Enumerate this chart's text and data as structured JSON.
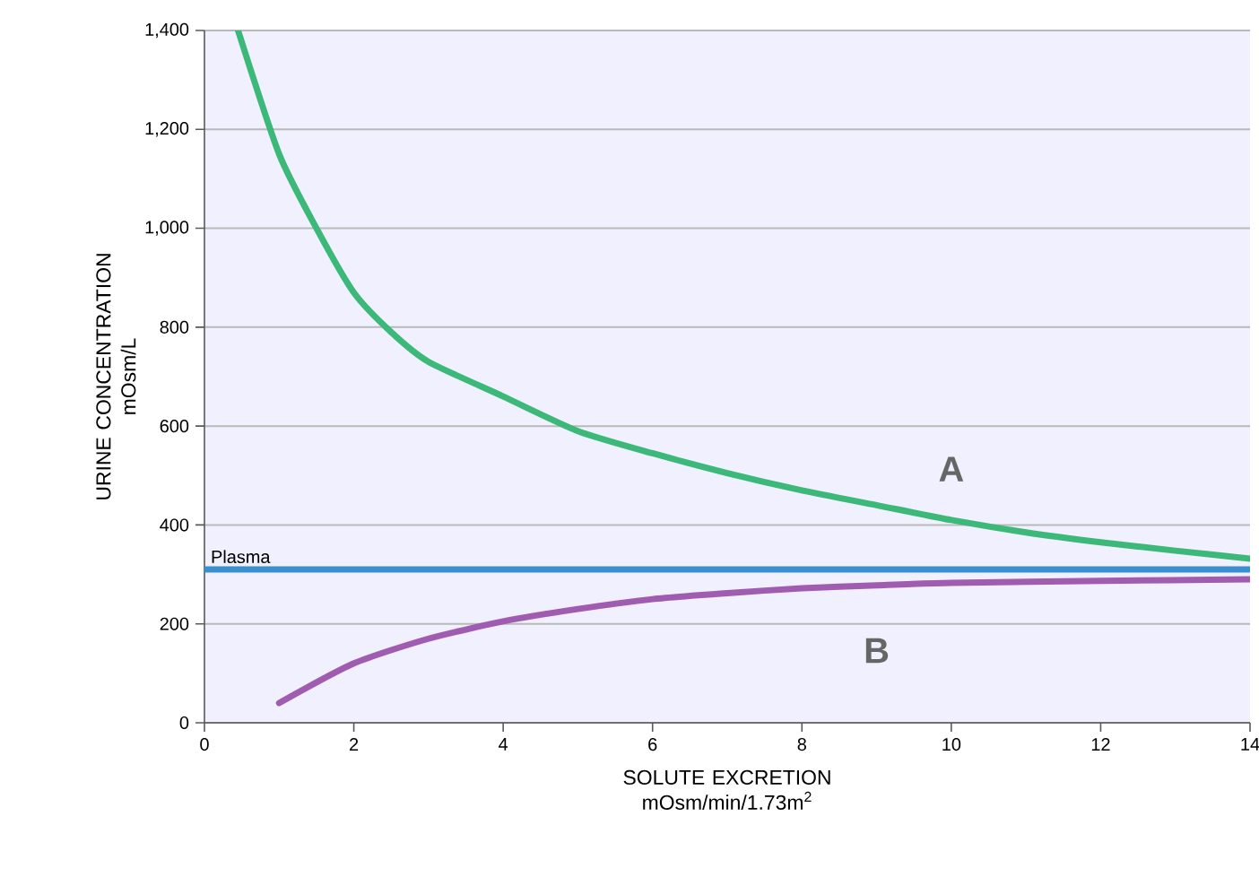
{
  "chart_data": {
    "type": "line",
    "xlabel": "SOLUTE EXCRETION mOsm/min/1.73m$^{2}$",
    "ylabel": "URINE CONCENTRATION mOsm/L",
    "xlim": [
      0,
      14
    ],
    "xticks": [
      0,
      2,
      4,
      6,
      8,
      10,
      12,
      14
    ],
    "ylim": [
      0,
      1400
    ],
    "yticks": [
      0,
      200,
      400,
      600,
      800,
      {
        "value": 1000,
        "label": "1,000"
      },
      {
        "value": 1200,
        "label": "1,200"
      },
      {
        "value": 1400,
        "label": "1,400"
      }
    ],
    "grid": "y",
    "marker": "none",
    "line_style": "solid",
    "series": [
      {
        "name": "A",
        "color": "#3cb878",
        "x": [
          0.45,
          1,
          1.5,
          2,
          2.5,
          3,
          4,
          5,
          6,
          7,
          8,
          9,
          10,
          11,
          12,
          13,
          14
        ],
        "values": [
          1400,
          1150,
          1000,
          870,
          790,
          730,
          660,
          590,
          545,
          505,
          470,
          440,
          410,
          385,
          365,
          348,
          332
        ]
      },
      {
        "name": "B",
        "color": "#a05cb0",
        "x": [
          1,
          2,
          3,
          4,
          5,
          6,
          7,
          8,
          9,
          10,
          12,
          14
        ],
        "values": [
          40,
          120,
          170,
          205,
          230,
          250,
          262,
          272,
          278,
          283,
          287,
          290
        ]
      }
    ],
    "ref_lines": [
      {
        "axis": "y",
        "value": 310,
        "label": "Plasma",
        "color": "#3a8fd0"
      }
    ]
  }
}
